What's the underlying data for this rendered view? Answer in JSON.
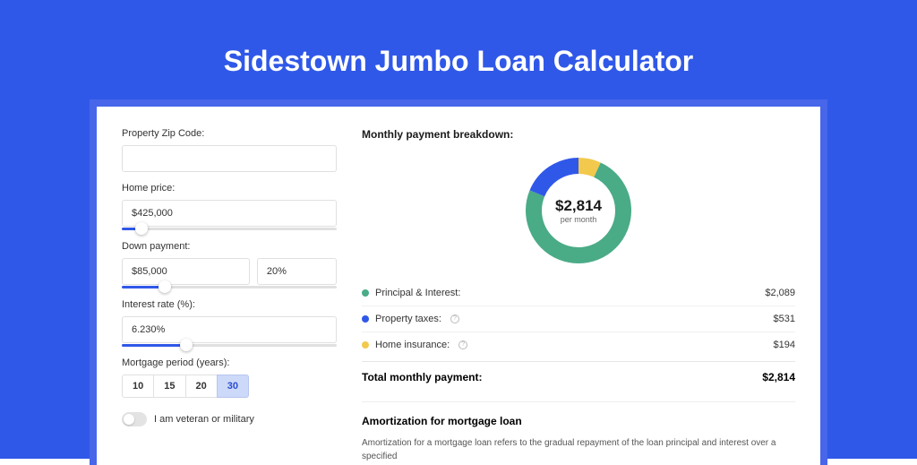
{
  "page": {
    "title": "Sidestown Jumbo Loan Calculator",
    "bg_color": "#3058e8",
    "card_bg": "#ffffff"
  },
  "form": {
    "zip": {
      "label": "Property Zip Code:",
      "value": ""
    },
    "home_price": {
      "label": "Home price:",
      "value": "$425,000",
      "slider_pct": 9
    },
    "down_payment": {
      "label": "Down payment:",
      "value": "$85,000",
      "pct_value": "20%",
      "slider_pct": 20
    },
    "interest_rate": {
      "label": "Interest rate (%):",
      "value": "6.230%",
      "slider_pct": 30
    },
    "mortgage_period": {
      "label": "Mortgage period (years):",
      "options": [
        "10",
        "15",
        "20",
        "30"
      ],
      "selected": "30"
    },
    "veteran": {
      "label": "I am veteran or military",
      "checked": false
    }
  },
  "breakdown": {
    "title": "Monthly payment breakdown:",
    "donut": {
      "type": "donut",
      "center_amount": "$2,814",
      "center_sub": "per month",
      "radius": 50,
      "stroke_width": 18,
      "background_color": "#ffffff",
      "segments": [
        {
          "label": "Principal & Interest:",
          "value": "$2,089",
          "value_num": 2089,
          "color": "#4aab87",
          "has_info": false
        },
        {
          "label": "Property taxes:",
          "value": "$531",
          "value_num": 531,
          "color": "#3058e8",
          "has_info": true
        },
        {
          "label": "Home insurance:",
          "value": "$194",
          "value_num": 194,
          "color": "#f2c94c",
          "has_info": true
        }
      ],
      "total_num": 2814
    },
    "total_row": {
      "label": "Total monthly payment:",
      "value": "$2,814"
    }
  },
  "amortization": {
    "title": "Amortization for mortgage loan",
    "text": "Amortization for a mortgage loan refers to the gradual repayment of the loan principal and interest over a specified"
  }
}
